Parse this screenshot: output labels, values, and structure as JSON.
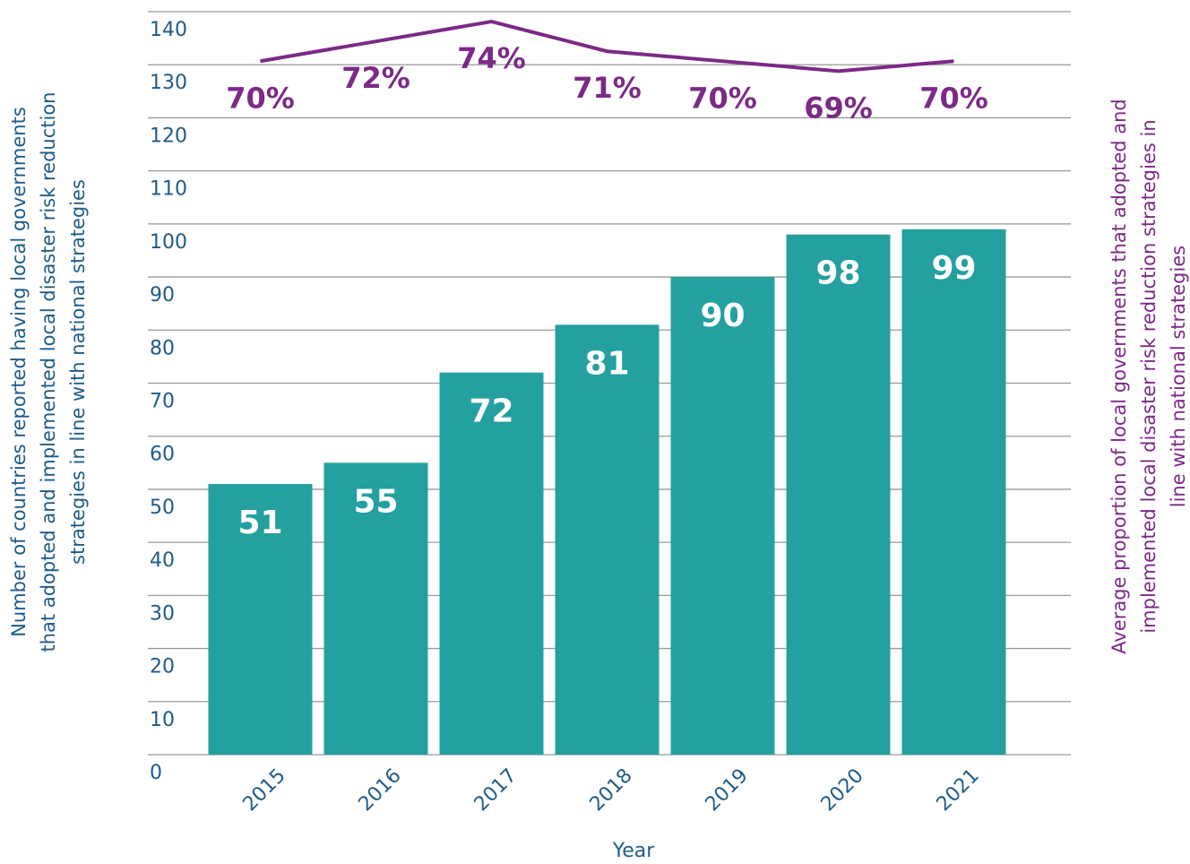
{
  "chart_data": {
    "type": "bar",
    "x_label": "Year",
    "y_label": [
      "Number of countries reported having local governments",
      "that adopted and implemented local disaster risk reduction",
      "strategies in line with national strategies"
    ],
    "y2_label": [
      "Average proportion of local governments that adopted and",
      "implemented local disaster risk reduction strategies in",
      "line with national strategies"
    ],
    "categories": [
      "2015",
      "2016",
      "2017",
      "2018",
      "2019",
      "2020",
      "2021"
    ],
    "series": [
      {
        "name": "Number of countries",
        "type": "bar",
        "color": "#23a09f",
        "values": [
          51,
          55,
          72,
          81,
          90,
          98,
          99
        ]
      },
      {
        "name": "Average proportion",
        "type": "line",
        "axis": "y2",
        "color": "#7b2a86",
        "values": [
          70,
          72,
          74,
          71,
          70,
          69,
          70
        ],
        "value_labels": [
          "70%",
          "72%",
          "74%",
          "71%",
          "70%",
          "69%",
          "70%"
        ]
      }
    ],
    "ylim": [
      0,
      140
    ],
    "yticks": [
      0,
      10,
      20,
      30,
      40,
      50,
      60,
      70,
      80,
      90,
      100,
      110,
      120,
      130,
      140
    ],
    "y2lim": [
      0,
      75
    ],
    "grid": true
  }
}
